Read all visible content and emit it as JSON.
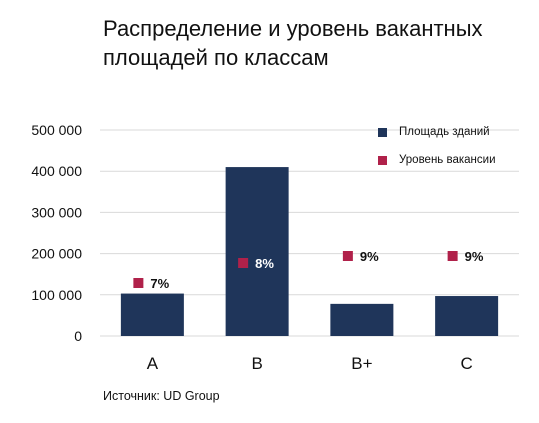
{
  "title": "Распределение и уровень вакантных площадей по классам",
  "source": "Источник: UD Group",
  "colors": {
    "area": "#1f355a",
    "vacancy": "#b0214a",
    "grid": "#d9d9d9"
  },
  "legend": [
    {
      "label": "Площадь зданий",
      "color": "#1f355a"
    },
    {
      "label": "Уровень вакансии",
      "color": "#b0214a"
    }
  ],
  "chart_data": {
    "type": "bar",
    "categories": [
      "A",
      "B",
      "B+",
      "C"
    ],
    "series": [
      {
        "name": "Площадь зданий",
        "kind": "bar",
        "values": [
          103000,
          410000,
          78000,
          97000
        ]
      },
      {
        "name": "Уровень вакансии",
        "kind": "marker",
        "values": [
          7,
          8,
          9,
          9
        ],
        "labels": [
          "7%",
          "8%",
          "9%",
          "9%"
        ]
      }
    ],
    "yticks": [
      "500 000",
      "400 000",
      "300 000",
      "200 000",
      "100 000",
      "0"
    ],
    "ylim": [
      0,
      500000
    ],
    "grid": true,
    "legend_position": "top-right"
  }
}
